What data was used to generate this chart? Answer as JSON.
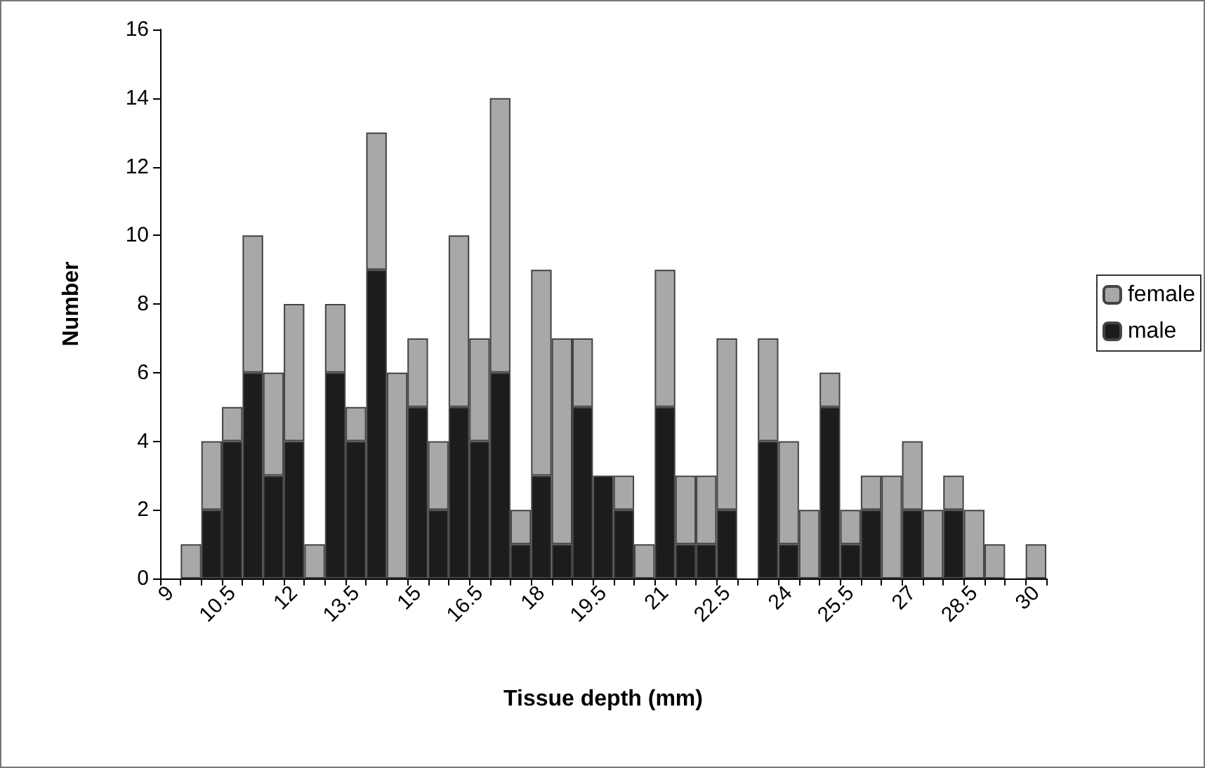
{
  "chart_data": {
    "type": "bar",
    "stacked": true,
    "xlabel": "Tissue depth (mm)",
    "ylabel": "Number",
    "categories": [
      "9",
      null,
      null,
      "10.5",
      null,
      null,
      "12",
      null,
      null,
      "13.5",
      null,
      null,
      "15",
      null,
      null,
      "16.5",
      null,
      null,
      "18",
      null,
      null,
      "19.5",
      null,
      null,
      "21",
      null,
      null,
      "22.5",
      null,
      null,
      "24",
      null,
      null,
      "25.5",
      null,
      null,
      "27",
      null,
      null,
      "28.5",
      null,
      null,
      "30"
    ],
    "series": [
      {
        "name": "male",
        "color": "#1c1c1c",
        "values": [
          0,
          0,
          2,
          4,
          6,
          3,
          4,
          0,
          6,
          4,
          9,
          0,
          5,
          2,
          5,
          4,
          6,
          1,
          3,
          1,
          5,
          3,
          2,
          0,
          5,
          1,
          1,
          2,
          0,
          4,
          1,
          0,
          5,
          1,
          2,
          0,
          2,
          0,
          2,
          0,
          0,
          0,
          0
        ]
      },
      {
        "name": "female",
        "color": "#a8a8a8",
        "values": [
          0,
          1,
          2,
          1,
          4,
          3,
          4,
          1,
          2,
          1,
          4,
          6,
          2,
          2,
          5,
          3,
          8,
          1,
          6,
          6,
          2,
          0,
          1,
          1,
          4,
          2,
          2,
          5,
          0,
          3,
          3,
          2,
          1,
          1,
          1,
          3,
          2,
          2,
          1,
          2,
          1,
          0,
          1
        ]
      }
    ],
    "ylim": [
      0,
      16
    ],
    "yticks": [
      0,
      2,
      4,
      6,
      8,
      10,
      12,
      14,
      16
    ],
    "grid": false,
    "legend": "right"
  }
}
